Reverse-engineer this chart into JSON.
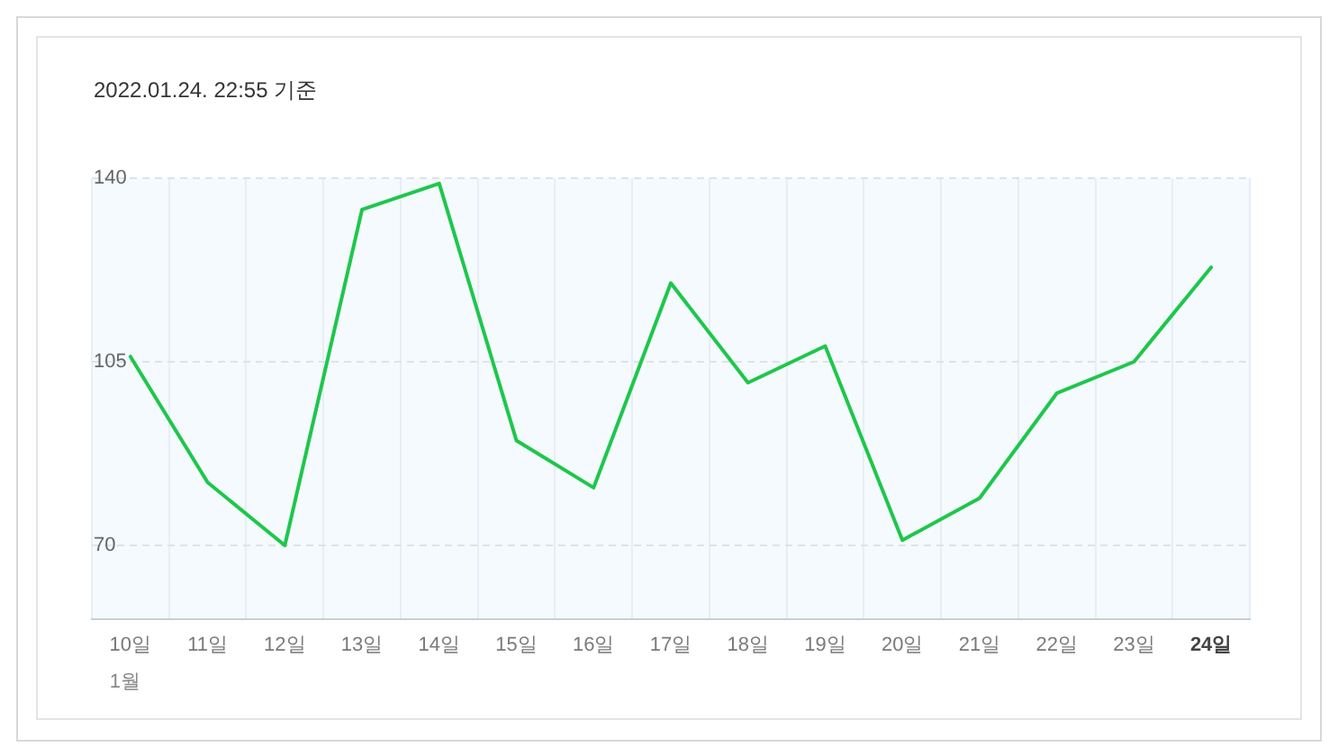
{
  "chart_data": {
    "type": "line",
    "title": "2022.01.24. 22:55 기준",
    "categories": [
      "10일",
      "11일",
      "12일",
      "13일",
      "14일",
      "15일",
      "16일",
      "17일",
      "18일",
      "19일",
      "20일",
      "21일",
      "22일",
      "23일",
      "24일"
    ],
    "series": [
      {
        "color": "#1ec74b",
        "values": [
          106,
          82,
          70,
          134,
          139,
          90,
          81,
          120,
          101,
          108,
          71,
          79,
          99,
          105,
          123
        ]
      }
    ],
    "ylim": [
      56,
      140
    ],
    "yticks": [
      70,
      105,
      140
    ],
    "grid": true,
    "marker": "none",
    "annotations": [
      "1월"
    ]
  }
}
